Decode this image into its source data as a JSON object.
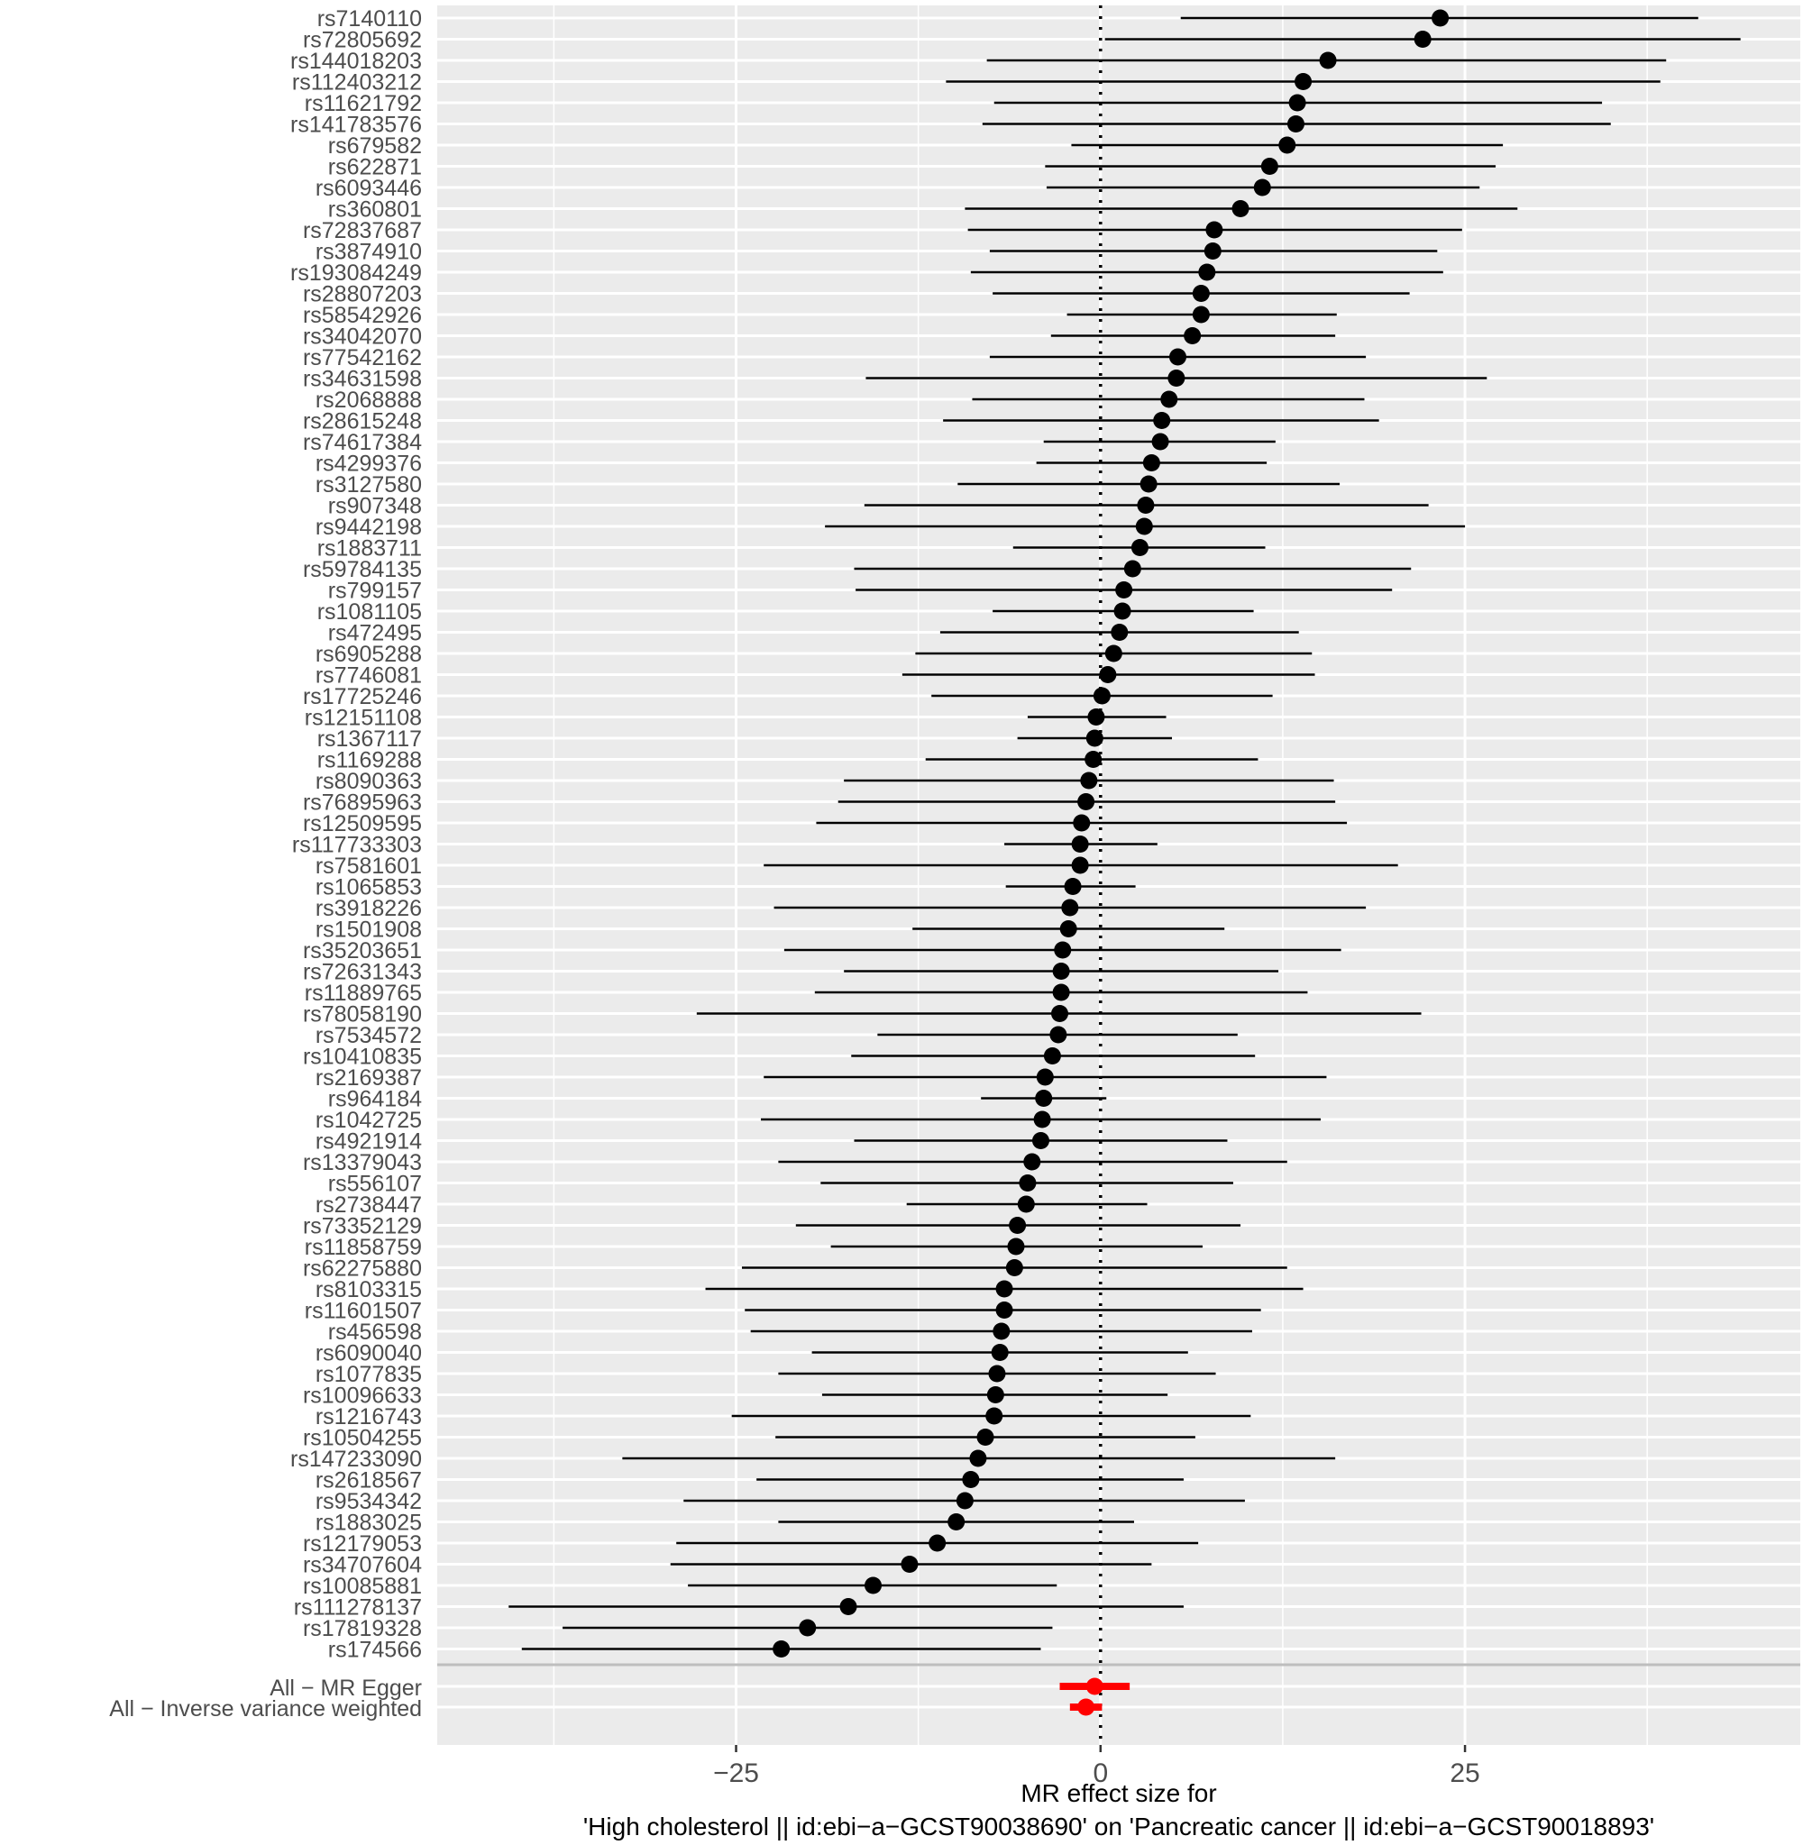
{
  "chart_data": {
    "type": "forest",
    "xlabel_line1": "MR effect size for",
    "xlabel_line2": "'High cholesterol || id:ebi−a−GCST90038690' on 'Pancreatic cancer || id:ebi−a−GCST90018893'",
    "xlim": [
      -45.5,
      48
    ],
    "xticks": [
      -25,
      0,
      25
    ],
    "xtick_labels": [
      "−25",
      "0",
      "25"
    ],
    "reference_line": 0,
    "colors": {
      "snp": "#000000",
      "summary": "#ff0000",
      "panel": "#ebebeb",
      "grid": "#ffffff",
      "divider": "#bebebe"
    },
    "snps": [
      {
        "label": "rs7140110",
        "b": 23.3,
        "lo": 5.5,
        "hi": 41.0
      },
      {
        "label": "rs72805692",
        "b": 22.1,
        "lo": 0.3,
        "hi": 43.9
      },
      {
        "label": "rs144018203",
        "b": 15.6,
        "lo": -7.8,
        "hi": 38.8
      },
      {
        "label": "rs112403212",
        "b": 13.9,
        "lo": -10.6,
        "hi": 38.4
      },
      {
        "label": "rs11621792",
        "b": 13.5,
        "lo": -7.3,
        "hi": 34.4
      },
      {
        "label": "rs141783576",
        "b": 13.4,
        "lo": -8.1,
        "hi": 35.0
      },
      {
        "label": "rs679582",
        "b": 12.8,
        "lo": -2.0,
        "hi": 27.6
      },
      {
        "label": "rs622871",
        "b": 11.6,
        "lo": -3.8,
        "hi": 27.1
      },
      {
        "label": "rs6093446",
        "b": 11.1,
        "lo": -3.7,
        "hi": 26.0
      },
      {
        "label": "rs360801",
        "b": 9.6,
        "lo": -9.3,
        "hi": 28.6
      },
      {
        "label": "rs72837687",
        "b": 7.8,
        "lo": -9.1,
        "hi": 24.8
      },
      {
        "label": "rs3874910",
        "b": 7.7,
        "lo": -7.6,
        "hi": 23.1
      },
      {
        "label": "rs193084249",
        "b": 7.3,
        "lo": -8.9,
        "hi": 23.5
      },
      {
        "label": "rs28807203",
        "b": 6.9,
        "lo": -7.4,
        "hi": 21.2
      },
      {
        "label": "rs58542926",
        "b": 6.9,
        "lo": -2.3,
        "hi": 16.2
      },
      {
        "label": "rs34042070",
        "b": 6.3,
        "lo": -3.4,
        "hi": 16.1
      },
      {
        "label": "rs77542162",
        "b": 5.3,
        "lo": -7.6,
        "hi": 18.2
      },
      {
        "label": "rs34631598",
        "b": 5.2,
        "lo": -16.1,
        "hi": 26.5
      },
      {
        "label": "rs2068888",
        "b": 4.7,
        "lo": -8.8,
        "hi": 18.1
      },
      {
        "label": "rs28615248",
        "b": 4.2,
        "lo": -10.8,
        "hi": 19.1
      },
      {
        "label": "rs74617384",
        "b": 4.1,
        "lo": -3.9,
        "hi": 12.0
      },
      {
        "label": "rs4299376",
        "b": 3.5,
        "lo": -4.4,
        "hi": 11.4
      },
      {
        "label": "rs3127580",
        "b": 3.3,
        "lo": -9.8,
        "hi": 16.4
      },
      {
        "label": "rs907348",
        "b": 3.1,
        "lo": -16.2,
        "hi": 22.5
      },
      {
        "label": "rs9442198",
        "b": 3.0,
        "lo": -18.9,
        "hi": 25.0
      },
      {
        "label": "rs1883711",
        "b": 2.7,
        "lo": -6.0,
        "hi": 11.3
      },
      {
        "label": "rs59784135",
        "b": 2.2,
        "lo": -16.9,
        "hi": 21.3
      },
      {
        "label": "rs799157",
        "b": 1.6,
        "lo": -16.8,
        "hi": 20.0
      },
      {
        "label": "rs1081105",
        "b": 1.5,
        "lo": -7.4,
        "hi": 10.5
      },
      {
        "label": "rs472495",
        "b": 1.3,
        "lo": -11.0,
        "hi": 13.6
      },
      {
        "label": "rs6905288",
        "b": 0.9,
        "lo": -12.7,
        "hi": 14.5
      },
      {
        "label": "rs7746081",
        "b": 0.5,
        "lo": -13.6,
        "hi": 14.7
      },
      {
        "label": "rs17725246",
        "b": 0.1,
        "lo": -11.6,
        "hi": 11.8
      },
      {
        "label": "rs12151108",
        "b": -0.3,
        "lo": -5.0,
        "hi": 4.5
      },
      {
        "label": "rs1367117",
        "b": -0.4,
        "lo": -5.7,
        "hi": 4.9
      },
      {
        "label": "rs1169288",
        "b": -0.5,
        "lo": -12.0,
        "hi": 10.8
      },
      {
        "label": "rs8090363",
        "b": -0.8,
        "lo": -17.6,
        "hi": 16.0
      },
      {
        "label": "rs76895963",
        "b": -1.0,
        "lo": -18.0,
        "hi": 16.1
      },
      {
        "label": "rs12509595",
        "b": -1.3,
        "lo": -19.5,
        "hi": 16.9
      },
      {
        "label": "rs117733303",
        "b": -1.4,
        "lo": -6.6,
        "hi": 3.9
      },
      {
        "label": "rs7581601",
        "b": -1.4,
        "lo": -23.1,
        "hi": 20.4
      },
      {
        "label": "rs1065853",
        "b": -1.9,
        "lo": -6.5,
        "hi": 2.4
      },
      {
        "label": "rs3918226",
        "b": -2.1,
        "lo": -22.4,
        "hi": 18.2
      },
      {
        "label": "rs1501908",
        "b": -2.2,
        "lo": -12.9,
        "hi": 8.5
      },
      {
        "label": "rs35203651",
        "b": -2.6,
        "lo": -21.7,
        "hi": 16.5
      },
      {
        "label": "rs72631343",
        "b": -2.7,
        "lo": -17.6,
        "hi": 12.2
      },
      {
        "label": "rs11889765",
        "b": -2.7,
        "lo": -19.6,
        "hi": 14.2
      },
      {
        "label": "rs78058190",
        "b": -2.8,
        "lo": -27.7,
        "hi": 22.0
      },
      {
        "label": "rs7534572",
        "b": -2.9,
        "lo": -15.3,
        "hi": 9.4
      },
      {
        "label": "rs10410835",
        "b": -3.3,
        "lo": -17.1,
        "hi": 10.6
      },
      {
        "label": "rs2169387",
        "b": -3.8,
        "lo": -23.1,
        "hi": 15.5
      },
      {
        "label": "rs964184",
        "b": -3.9,
        "lo": -8.2,
        "hi": 0.4
      },
      {
        "label": "rs1042725",
        "b": -4.0,
        "lo": -23.3,
        "hi": 15.1
      },
      {
        "label": "rs4921914",
        "b": -4.1,
        "lo": -16.9,
        "hi": 8.7
      },
      {
        "label": "rs13379043",
        "b": -4.7,
        "lo": -22.1,
        "hi": 12.8
      },
      {
        "label": "rs556107",
        "b": -5.0,
        "lo": -19.2,
        "hi": 9.1
      },
      {
        "label": "rs2738447",
        "b": -5.1,
        "lo": -13.3,
        "hi": 3.2
      },
      {
        "label": "rs73352129",
        "b": -5.7,
        "lo": -20.9,
        "hi": 9.6
      },
      {
        "label": "rs11858759",
        "b": -5.8,
        "lo": -18.5,
        "hi": 7.0
      },
      {
        "label": "rs62275880",
        "b": -5.9,
        "lo": -24.6,
        "hi": 12.8
      },
      {
        "label": "rs8103315",
        "b": -6.6,
        "lo": -27.1,
        "hi": 13.9
      },
      {
        "label": "rs11601507",
        "b": -6.6,
        "lo": -24.4,
        "hi": 11.0
      },
      {
        "label": "rs456598",
        "b": -6.8,
        "lo": -24.0,
        "hi": 10.4
      },
      {
        "label": "rs6090040",
        "b": -6.9,
        "lo": -19.8,
        "hi": 6.0
      },
      {
        "label": "rs1077835",
        "b": -7.1,
        "lo": -22.1,
        "hi": 7.9
      },
      {
        "label": "rs10096633",
        "b": -7.2,
        "lo": -19.1,
        "hi": 4.6
      },
      {
        "label": "rs1216743",
        "b": -7.3,
        "lo": -25.3,
        "hi": 10.3
      },
      {
        "label": "rs10504255",
        "b": -7.9,
        "lo": -22.3,
        "hi": 6.5
      },
      {
        "label": "rs147233090",
        "b": -8.4,
        "lo": -32.8,
        "hi": 16.1
      },
      {
        "label": "rs2618567",
        "b": -8.9,
        "lo": -23.6,
        "hi": 5.7
      },
      {
        "label": "rs9534342",
        "b": -9.3,
        "lo": -28.6,
        "hi": 9.9
      },
      {
        "label": "rs1883025",
        "b": -9.9,
        "lo": -22.1,
        "hi": 2.3
      },
      {
        "label": "rs12179053",
        "b": -11.2,
        "lo": -29.1,
        "hi": 6.7
      },
      {
        "label": "rs34707604",
        "b": -13.1,
        "lo": -29.5,
        "hi": 3.5
      },
      {
        "label": "rs10085881",
        "b": -15.6,
        "lo": -28.3,
        "hi": -3.0
      },
      {
        "label": "rs111278137",
        "b": -17.3,
        "lo": -40.6,
        "hi": 5.7
      },
      {
        "label": "rs17819328",
        "b": -20.1,
        "lo": -36.9,
        "hi": -3.3
      },
      {
        "label": "rs174566",
        "b": -21.9,
        "lo": -39.7,
        "hi": -4.1
      }
    ],
    "summary": [
      {
        "label": "All − MR Egger",
        "b": -0.4,
        "lo": -2.8,
        "hi": 2.0
      },
      {
        "label": "All − Inverse variance weighted",
        "b": -1.0,
        "lo": -2.1,
        "hi": 0.1
      }
    ]
  }
}
